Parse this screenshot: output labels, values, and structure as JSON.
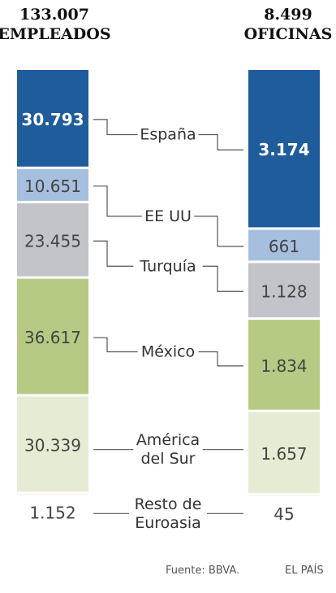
{
  "headers": {
    "employees_total": "133.007",
    "employees_label": "EMPLEADOS",
    "offices_total": "8.499",
    "offices_label": "OFICINAS"
  },
  "chart_data": {
    "type": "bar",
    "stacked": true,
    "categories": [
      "España",
      "EE UU",
      "Turquía",
      "México",
      "América del Sur",
      "Resto de Euroasia"
    ],
    "category_lines": [
      [
        "España"
      ],
      [
        "EE UU"
      ],
      [
        "Turquía"
      ],
      [
        "México"
      ],
      [
        "América",
        "del Sur"
      ],
      [
        "Resto de",
        "Euroasia"
      ]
    ],
    "series": [
      {
        "name": "EMPLEADOS",
        "total": 133007,
        "values": [
          30793,
          10651,
          23455,
          36617,
          30339,
          1152
        ],
        "labels": [
          "30.793",
          "10.651",
          "23.455",
          "36.617",
          "30.339",
          "1.152"
        ]
      },
      {
        "name": "OFICINAS",
        "total": 8499,
        "values": [
          3174,
          661,
          1128,
          1834,
          1657,
          45
        ],
        "labels": [
          "3.174",
          "661",
          "1.128",
          "1.834",
          "1.657",
          "45"
        ]
      }
    ],
    "colors": [
      "#1f5c9c",
      "#a6bfdf",
      "#c3c4c9",
      "#b7ca84",
      "#e5ecd3",
      "#f2f2ea"
    ],
    "value_label_colors": [
      "#ffffff",
      "#444444",
      "#444444",
      "#444444",
      "#444444",
      "#444444"
    ]
  },
  "footer": {
    "source": "Fuente: BBVA.",
    "brand": "EL PAÍS"
  }
}
